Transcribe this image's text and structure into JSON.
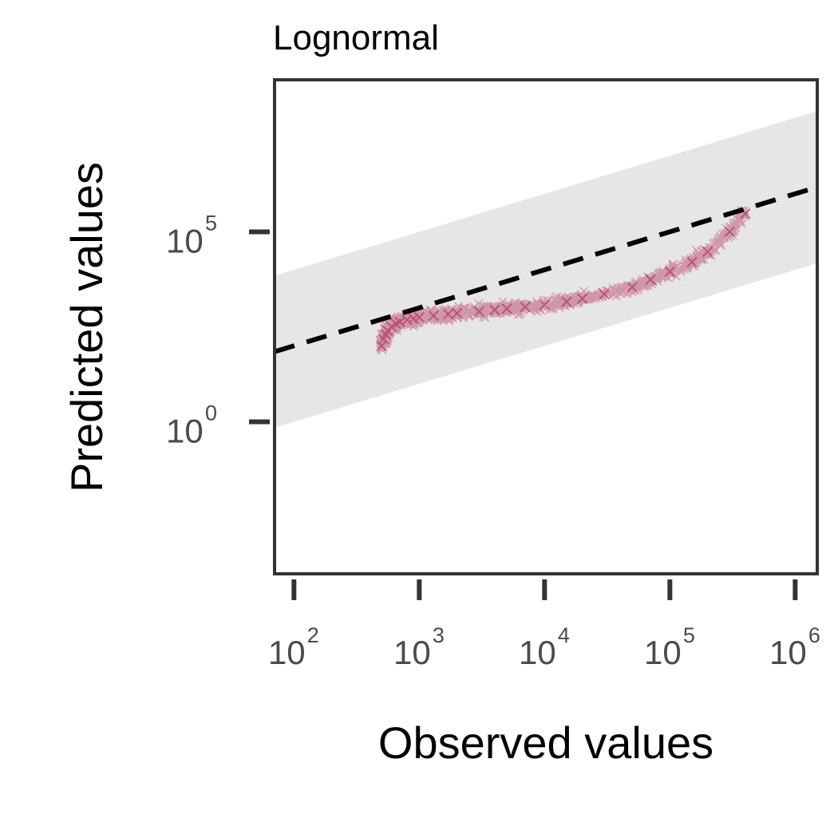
{
  "chart_data": {
    "type": "scatter",
    "title": "Lognormal",
    "xlabel": "Observed values",
    "ylabel": "Predicted values",
    "x_scale": "log",
    "y_scale": "log",
    "xlim": [
      70,
      1500000
    ],
    "ylim": [
      0.0001,
      1000000000
    ],
    "x_ticks": [
      {
        "base": "10",
        "exp": "2",
        "value": 100
      },
      {
        "base": "10",
        "exp": "3",
        "value": 1000
      },
      {
        "base": "10",
        "exp": "4",
        "value": 10000
      },
      {
        "base": "10",
        "exp": "5",
        "value": 100000
      },
      {
        "base": "10",
        "exp": "6",
        "value": 1000000
      }
    ],
    "y_ticks": [
      {
        "base": "10",
        "exp": "5",
        "value": 100000
      },
      {
        "base": "10",
        "exp": "0",
        "value": 1
      }
    ],
    "identity_line": {
      "style": "dashed",
      "color": "#000000"
    },
    "band": {
      "color": "#e6e6e6",
      "lower_factor": 0.01,
      "upper_factor": 100
    },
    "series": [
      {
        "marker": "x",
        "color": "#b5385f",
        "x": [
          500,
          520,
          540,
          560,
          600,
          650,
          700,
          800,
          900,
          1000,
          1300,
          1700,
          2000,
          3000,
          4000,
          5000,
          7000,
          10000,
          15000,
          20000,
          30000,
          50000,
          70000,
          100000,
          150000,
          200000,
          300000,
          400000
        ],
        "y": [
          100,
          150,
          200,
          250,
          320,
          380,
          420,
          480,
          520,
          560,
          620,
          680,
          720,
          800,
          880,
          950,
          1050,
          1200,
          1450,
          1750,
          2300,
          3500,
          5500,
          9000,
          16000,
          30000,
          100000,
          300000
        ]
      }
    ],
    "grid": false,
    "legend": "none"
  }
}
